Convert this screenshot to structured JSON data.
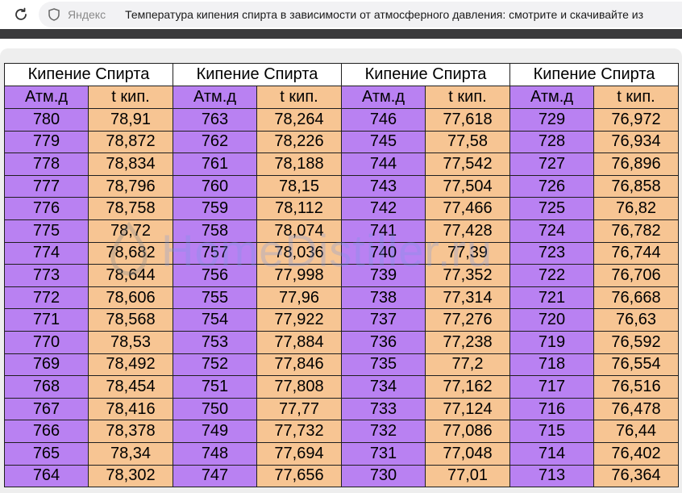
{
  "browser": {
    "domain": "Яндекс",
    "page_title": "Температура кипения спирта в зависимости от атмосферного давления: смотрите и скачивайте из"
  },
  "table": {
    "group_label": "Кипение Спирта",
    "col_atm": "Атм.д",
    "col_temp": "t кип.",
    "columns": [
      {
        "atm": [
          "780",
          "779",
          "778",
          "777",
          "776",
          "775",
          "774",
          "773",
          "772",
          "771",
          "770",
          "769",
          "768",
          "767",
          "766",
          "765",
          "764"
        ],
        "temp": [
          "78,91",
          "78,872",
          "78,834",
          "78,796",
          "78,758",
          "78,72",
          "78,682",
          "78,644",
          "78,606",
          "78,568",
          "78,53",
          "78,492",
          "78,454",
          "78,416",
          "78,378",
          "78,34",
          "78,302"
        ]
      },
      {
        "atm": [
          "763",
          "762",
          "761",
          "760",
          "759",
          "758",
          "757",
          "756",
          "755",
          "754",
          "753",
          "752",
          "751",
          "750",
          "749",
          "748",
          "747"
        ],
        "temp": [
          "78,264",
          "78,226",
          "78,188",
          "78,15",
          "78,112",
          "78,074",
          "78,036",
          "77,998",
          "77,96",
          "77,922",
          "77,884",
          "77,846",
          "77,808",
          "77,77",
          "77,732",
          "77,694",
          "77,656"
        ]
      },
      {
        "atm": [
          "746",
          "745",
          "744",
          "743",
          "742",
          "741",
          "740",
          "739",
          "738",
          "737",
          "736",
          "735",
          "734",
          "733",
          "732",
          "731",
          "730"
        ],
        "temp": [
          "77,618",
          "77,58",
          "77,542",
          "77,504",
          "77,466",
          "77,428",
          "77,39",
          "77,352",
          "77,314",
          "77,276",
          "77,238",
          "77,2",
          "77,162",
          "77,124",
          "77,086",
          "77,048",
          "77,01"
        ]
      },
      {
        "atm": [
          "729",
          "728",
          "727",
          "726",
          "725",
          "724",
          "723",
          "722",
          "721",
          "720",
          "719",
          "718",
          "717",
          "716",
          "715",
          "714",
          "713"
        ],
        "temp": [
          "76,972",
          "76,934",
          "76,896",
          "76,858",
          "76,82",
          "76,782",
          "76,744",
          "76,706",
          "76,668",
          "76,63",
          "76,592",
          "76,554",
          "76,516",
          "76,478",
          "76,44",
          "76,402",
          "76,364"
        ]
      }
    ]
  },
  "watermark": "HomeDistiller.ru",
  "colors": {
    "atm_cell": "#b981f2",
    "temp_cell": "#f7c593",
    "border": "#1f1f1f"
  }
}
